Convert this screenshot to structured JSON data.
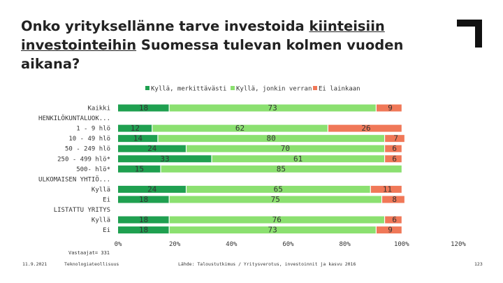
{
  "title": {
    "part1": "Onko yrityksellänne tarve investoida ",
    "underline1": "kiinteisiin investointeihin",
    "part2": " Suomessa tulevan kolmen vuoden aikana?"
  },
  "respondents": "Vastaajat= 331",
  "footer": {
    "date": "11.9.2021",
    "org": "Teknologiateollisuus",
    "source": "Lähde: Taloustutkimus / Yritysverotus, investoinnit ja kasvu 2016",
    "page": "123"
  },
  "colors": {
    "series1": "#1fa050",
    "series2": "#8be070",
    "series3": "#f07858",
    "divider": "#ffffff"
  },
  "chart_data": {
    "type": "bar",
    "orientation": "horizontal-stacked",
    "title": "Onko yrityksellänne tarve investoida kiinteisiin investointeihin Suomessa tulevan kolmen vuoden aikana?",
    "legend_position": "top",
    "xlim": [
      0,
      120
    ],
    "xticks": [
      "0%",
      "20%",
      "40%",
      "60%",
      "80%",
      "100%",
      "120%"
    ],
    "categories": [
      "Kaikki",
      "HENKILÖKUNTALUOK...",
      "1 - 9 hlö",
      "10 - 49 hlö",
      "50 - 249 hlö",
      "250 - 499 hlö*",
      "500- hlö*",
      "ULKOMAISEN YHTIÖ...",
      "Kyllä",
      "Ei",
      "LISTATTU YRITYS",
      "Kyllä",
      "Ei"
    ],
    "series": [
      {
        "name": "Kyllä, merkittävästi",
        "values": [
          18,
          null,
          12,
          14,
          24,
          33,
          15,
          null,
          24,
          18,
          null,
          18,
          18
        ]
      },
      {
        "name": "Kyllä, jonkin verran",
        "values": [
          73,
          null,
          62,
          80,
          70,
          61,
          85,
          null,
          65,
          75,
          null,
          76,
          73
        ]
      },
      {
        "name": "Ei lainkaan",
        "values": [
          9,
          null,
          26,
          7,
          6,
          6,
          null,
          null,
          11,
          8,
          null,
          6,
          9
        ]
      }
    ]
  }
}
